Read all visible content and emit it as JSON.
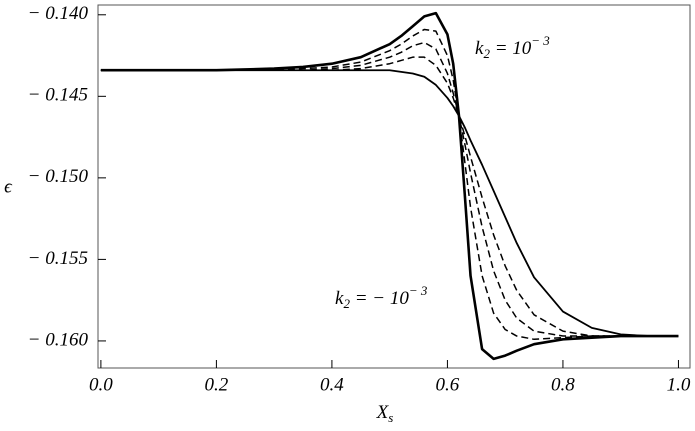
{
  "chart_data": {
    "type": "line",
    "x_label": {
      "base": "X",
      "sub": "s"
    },
    "y_label": "ϵ",
    "annotations": [
      {
        "base": "k",
        "sub": "2",
        "mid": " = 10",
        "sup": "− 3"
      },
      {
        "base": "k",
        "sub": "2",
        "mid": " = − 10",
        "sup": "− 3"
      }
    ],
    "x": [
      0,
      0.1,
      0.2,
      0.3,
      0.35,
      0.4,
      0.45,
      0.5,
      0.52,
      0.54,
      0.56,
      0.58,
      0.6,
      0.61,
      0.62,
      0.63,
      0.64,
      0.66,
      0.68,
      0.7,
      0.72,
      0.75,
      0.8,
      0.85,
      0.9,
      0.95,
      1.0
    ],
    "series": [
      {
        "color": "#000000",
        "width": 2.6,
        "dashed": false,
        "values": [
          -0.1434,
          -0.1434,
          -0.1434,
          -0.1433,
          -0.1432,
          -0.143,
          -0.1426,
          -0.1418,
          -0.1413,
          -0.1407,
          -0.1401,
          -0.1399,
          -0.1412,
          -0.143,
          -0.1462,
          -0.151,
          -0.156,
          -0.1605,
          -0.1611,
          -0.1609,
          -0.1606,
          -0.1602,
          -0.1599,
          -0.1598,
          -0.1597,
          -0.1597,
          -0.1597
        ]
      },
      {
        "color": "#000000",
        "width": 1.5,
        "dashed": true,
        "values": [
          -0.1434,
          -0.1434,
          -0.1434,
          -0.1434,
          -0.1433,
          -0.1432,
          -0.1429,
          -0.1422,
          -0.1418,
          -0.1413,
          -0.1409,
          -0.141,
          -0.1425,
          -0.144,
          -0.1462,
          -0.149,
          -0.1518,
          -0.156,
          -0.1583,
          -0.1593,
          -0.1597,
          -0.1599,
          -0.1598,
          -0.1597,
          -0.1597,
          -0.1597,
          -0.1597
        ]
      },
      {
        "color": "#000000",
        "width": 1.5,
        "dashed": true,
        "values": [
          -0.1434,
          -0.1434,
          -0.1434,
          -0.1434,
          -0.1434,
          -0.1433,
          -0.1431,
          -0.1426,
          -0.1423,
          -0.1419,
          -0.1417,
          -0.1421,
          -0.1436,
          -0.1448,
          -0.1462,
          -0.1479,
          -0.1497,
          -0.153,
          -0.1557,
          -0.1575,
          -0.1586,
          -0.1594,
          -0.1597,
          -0.1597,
          -0.1597,
          -0.1597,
          -0.1597
        ]
      },
      {
        "color": "#000000",
        "width": 1.5,
        "dashed": true,
        "values": [
          -0.1434,
          -0.1434,
          -0.1434,
          -0.1434,
          -0.1434,
          -0.1434,
          -0.1433,
          -0.143,
          -0.1428,
          -0.1426,
          -0.1426,
          -0.1431,
          -0.1442,
          -0.1451,
          -0.1462,
          -0.1474,
          -0.1487,
          -0.1512,
          -0.1535,
          -0.1554,
          -0.1569,
          -0.1584,
          -0.1594,
          -0.1597,
          -0.1597,
          -0.1597,
          -0.1597
        ]
      },
      {
        "color": "#000000",
        "width": 1.8,
        "dashed": false,
        "values": [
          -0.1434,
          -0.1434,
          -0.1434,
          -0.1434,
          -0.1434,
          -0.1434,
          -0.1434,
          -0.1434,
          -0.1435,
          -0.1436,
          -0.1438,
          -0.1443,
          -0.1451,
          -0.1456,
          -0.1462,
          -0.1469,
          -0.1477,
          -0.1492,
          -0.1508,
          -0.1524,
          -0.154,
          -0.1561,
          -0.1582,
          -0.1592,
          -0.1596,
          -0.1597,
          -0.1597
        ]
      }
    ],
    "xlim": [
      -0.005,
      1.02
    ],
    "ylim": [
      -0.16166,
      -0.1394
    ],
    "xticks": [
      {
        "value": 0,
        "label": "0.0"
      },
      {
        "value": 0.2,
        "label": "0.2"
      },
      {
        "value": 0.4,
        "label": "0.4"
      },
      {
        "value": 0.6,
        "label": "0.6"
      },
      {
        "value": 0.8,
        "label": "0.8"
      },
      {
        "value": 1.0,
        "label": "1.0"
      }
    ],
    "yticks": [
      {
        "value": -0.14,
        "label": "− 0.140"
      },
      {
        "value": -0.145,
        "label": "− 0.145"
      },
      {
        "value": -0.15,
        "label": "− 0.150"
      },
      {
        "value": -0.155,
        "label": "− 0.155"
      },
      {
        "value": -0.16,
        "label": "− 0.160"
      }
    ]
  }
}
